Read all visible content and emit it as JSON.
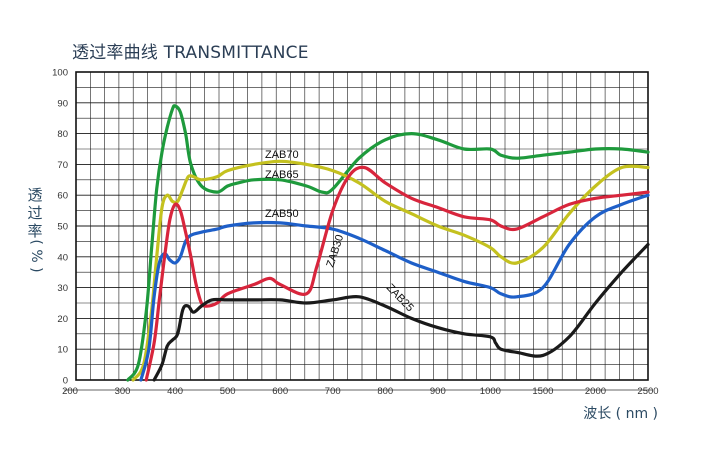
{
  "chart_data": {
    "type": "line",
    "title": "透过率曲线 TRANSMITTANCE",
    "ylabel": "透过率",
    "ylabel_unit": "( % )",
    "xlabel": "波长 ( nm )",
    "ylim": [
      0,
      100
    ],
    "yticks": [
      "0",
      "10",
      "20",
      "30",
      "40",
      "50",
      "60",
      "70",
      "80",
      "90",
      "100"
    ],
    "xticks": [
      "200",
      "300",
      "400",
      "500",
      "600",
      "700",
      "800",
      "900",
      "1000",
      "1500",
      "2000",
      "2500"
    ],
    "grid": true,
    "series": [
      {
        "name": "ZAB70",
        "color": "#1e9a3c",
        "x": [
          310,
          330,
          345,
          355,
          365,
          375,
          385,
          395,
          400,
          410,
          420,
          430,
          450,
          480,
          500,
          520,
          550,
          600,
          650,
          680,
          700,
          750,
          800,
          850,
          900,
          950,
          1000,
          1100,
          1250,
          1500,
          1750,
          2000,
          2250,
          2500
        ],
        "y": [
          0,
          5,
          22,
          42,
          62,
          74,
          82,
          88,
          89,
          87,
          80,
          70,
          63,
          61,
          63,
          64,
          65,
          65,
          63,
          61,
          62,
          72,
          78,
          80,
          78,
          75,
          75,
          73,
          72,
          73,
          74,
          75,
          75,
          74
        ]
      },
      {
        "name": "ZAB65",
        "color": "#c4c11f",
        "x": [
          320,
          340,
          355,
          365,
          375,
          385,
          395,
          405,
          415,
          425,
          435,
          450,
          480,
          500,
          550,
          600,
          650,
          700,
          750,
          800,
          850,
          900,
          950,
          1000,
          1100,
          1250,
          1500,
          1750,
          2000,
          2250,
          2500
        ],
        "y": [
          0,
          5,
          22,
          40,
          56,
          60,
          58,
          58,
          62,
          66,
          66,
          65,
          66,
          68,
          70,
          71,
          70,
          68,
          64,
          58,
          54,
          50,
          47,
          43,
          40,
          38,
          43,
          54,
          63,
          69,
          69
        ]
      },
      {
        "name": "ZAB50",
        "color": "#1e5fc8",
        "x": [
          335,
          350,
          360,
          370,
          380,
          390,
          400,
          410,
          420,
          430,
          450,
          480,
          500,
          550,
          600,
          650,
          700,
          750,
          800,
          850,
          900,
          950,
          1000,
          1100,
          1250,
          1500,
          1750,
          2000,
          2250,
          2500
        ],
        "y": [
          0,
          10,
          27,
          38,
          41,
          39,
          38,
          40,
          45,
          47,
          48,
          49,
          50,
          51,
          51,
          50,
          49,
          46,
          42,
          38,
          35,
          32,
          30,
          28,
          27,
          30,
          44,
          53,
          57,
          60
        ]
      },
      {
        "name": "ZAB30",
        "color": "#d8253c",
        "x": [
          345,
          360,
          370,
          380,
          390,
          400,
          410,
          420,
          430,
          440,
          450,
          460,
          480,
          500,
          550,
          580,
          600,
          650,
          670,
          700,
          730,
          760,
          800,
          850,
          900,
          950,
          1000,
          1100,
          1250,
          1500,
          1750,
          2000,
          2250,
          2500
        ],
        "y": [
          0,
          12,
          26,
          40,
          52,
          57,
          55,
          48,
          40,
          31,
          25,
          24,
          25,
          28,
          31,
          33,
          31,
          28,
          37,
          55,
          66,
          69,
          64,
          59,
          56,
          53,
          52,
          50,
          49,
          53,
          57,
          59,
          60,
          61
        ]
      },
      {
        "name": "ZAB25",
        "color": "#1a1a1a",
        "x": [
          360,
          375,
          385,
          395,
          405,
          415,
          425,
          435,
          450,
          470,
          500,
          550,
          600,
          650,
          700,
          750,
          800,
          850,
          900,
          950,
          1000,
          1050,
          1100,
          1250,
          1500,
          1750,
          2000,
          2250,
          2500
        ],
        "y": [
          0,
          5,
          11,
          13,
          15,
          23,
          24,
          22,
          24,
          26,
          26,
          26,
          26,
          25,
          26,
          27,
          24,
          20,
          17,
          15,
          14,
          12,
          10,
          9,
          8,
          14,
          25,
          35,
          44
        ]
      }
    ],
    "annotations": [
      {
        "text": "ZAB70",
        "series": "ZAB70"
      },
      {
        "text": "ZAB65",
        "series": "ZAB65"
      },
      {
        "text": "ZAB50",
        "series": "ZAB50"
      },
      {
        "text": "ZAB30",
        "series": "ZAB30"
      },
      {
        "text": "ZAB25",
        "series": "ZAB25"
      }
    ]
  }
}
